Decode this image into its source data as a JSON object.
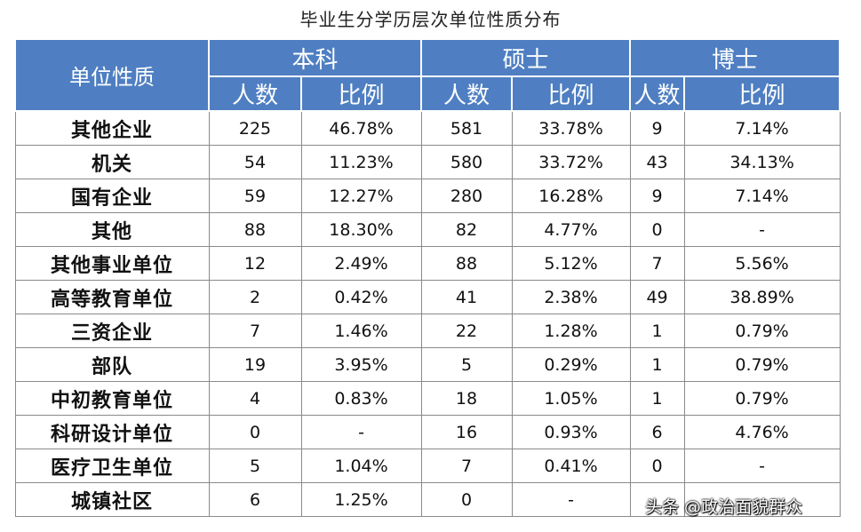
{
  "title": "毕业生分学历层次单位性质分布",
  "header": {
    "corner": "单位性质",
    "groups": [
      "本科",
      "硕士",
      "博士"
    ],
    "sub": [
      "人数",
      "比例",
      "人数",
      "比例",
      "人数",
      "比例"
    ]
  },
  "rows": [
    [
      "其他企业",
      "225",
      "46.78%",
      "581",
      "33.78%",
      "9",
      "7.14%"
    ],
    [
      "机关",
      "54",
      "11.23%",
      "580",
      "33.72%",
      "43",
      "34.13%"
    ],
    [
      "国有企业",
      "59",
      "12.27%",
      "280",
      "16.28%",
      "9",
      "7.14%"
    ],
    [
      "其他",
      "88",
      "18.30%",
      "82",
      "4.77%",
      "0",
      "-"
    ],
    [
      "其他事业单位",
      "12",
      "2.49%",
      "88",
      "5.12%",
      "7",
      "5.56%"
    ],
    [
      "高等教育单位",
      "2",
      "0.42%",
      "41",
      "2.38%",
      "49",
      "38.89%"
    ],
    [
      "三资企业",
      "7",
      "1.46%",
      "22",
      "1.28%",
      "1",
      "0.79%"
    ],
    [
      "部队",
      "19",
      "3.95%",
      "5",
      "0.29%",
      "1",
      "0.79%"
    ],
    [
      "中初教育单位",
      "4",
      "0.83%",
      "18",
      "1.05%",
      "1",
      "0.79%"
    ],
    [
      "科研设计单位",
      "0",
      "-",
      "16",
      "0.93%",
      "6",
      "4.76%"
    ],
    [
      "医疗卫生单位",
      "5",
      "1.04%",
      "7",
      "0.41%",
      "0",
      "-"
    ],
    [
      "城镇社区",
      "6",
      "1.25%",
      "0",
      "-",
      "",
      ""
    ]
  ],
  "watermark": "头条 @政治面貌群众",
  "colors": {
    "header_bg": "#4f7fc2",
    "header_text": "#ffffff",
    "grid_line": "#8a8a8a"
  }
}
